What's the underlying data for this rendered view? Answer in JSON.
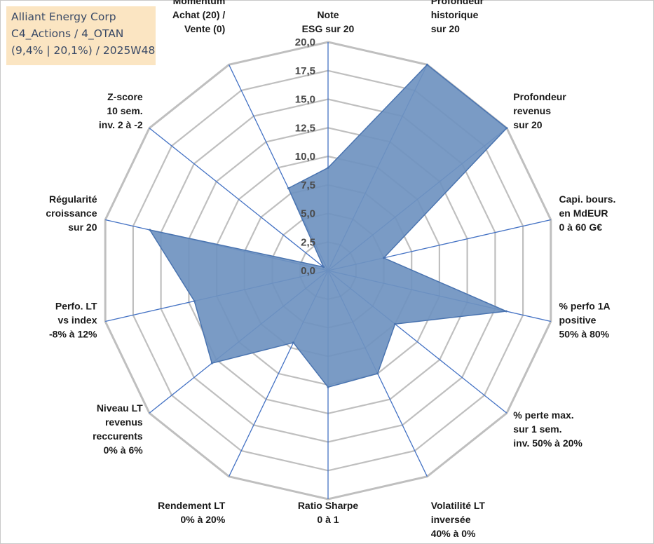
{
  "title_box": {
    "line1": "Alliant Energy Corp",
    "line2": "C4_Actions / 4_OTAN",
    "line3": "(9,4% | 20,1%) / 2025W48",
    "bg_color": "#fbe5c2",
    "text_color": "#3a4a66"
  },
  "chart_data": {
    "type": "radar",
    "r_range": [
      0,
      20
    ],
    "r_ticks": [
      "0,0",
      "2,5",
      "5,0",
      "7,5",
      "10,0",
      "12,5",
      "15,0",
      "17,5",
      "20,0"
    ],
    "axes": [
      [
        "Note",
        "ESG sur 20"
      ],
      [
        "Profondeur",
        "historique",
        "sur 20"
      ],
      [
        "Profondeur",
        "revenus",
        "sur 20"
      ],
      [
        "Capi. bours.",
        "en MdEUR",
        "0 à 60 G€"
      ],
      [
        "% perfo 1A",
        "positive",
        "50% à 80%"
      ],
      [
        "% perte max.",
        "sur 1 sem.",
        "inv. 50% à 20%"
      ],
      [
        "Volatilité LT",
        "inversée",
        "40% à 0%"
      ],
      [
        "Ratio Sharpe",
        "0 à 1"
      ],
      [
        "Rendement LT",
        "0% à 20%"
      ],
      [
        "Niveau LT",
        "revenus",
        "reccurents",
        "0% à 6%"
      ],
      [
        "Perfo. LT",
        "vs index",
        "-8% à 12%"
      ],
      [
        "Régularité",
        "croissance",
        "sur 20"
      ],
      [
        "Z-score",
        "10 sem.",
        "inv. 2 à -2"
      ],
      [
        "Momentum",
        "Achat (20) /",
        "Vente (0)"
      ]
    ],
    "series": [
      {
        "values": [
          9.0,
          20.0,
          20.0,
          5.0,
          16.0,
          7.5,
          10.0,
          10.2,
          7.0,
          13.0,
          12.0,
          16.0,
          0.5,
          8.0
        ]
      }
    ],
    "colors": {
      "fill": "#6f93c0",
      "stroke": "#4a74b0",
      "grid": "#bfbfbf",
      "spoke": "#4472c4"
    },
    "grid": true,
    "legend": "none"
  }
}
